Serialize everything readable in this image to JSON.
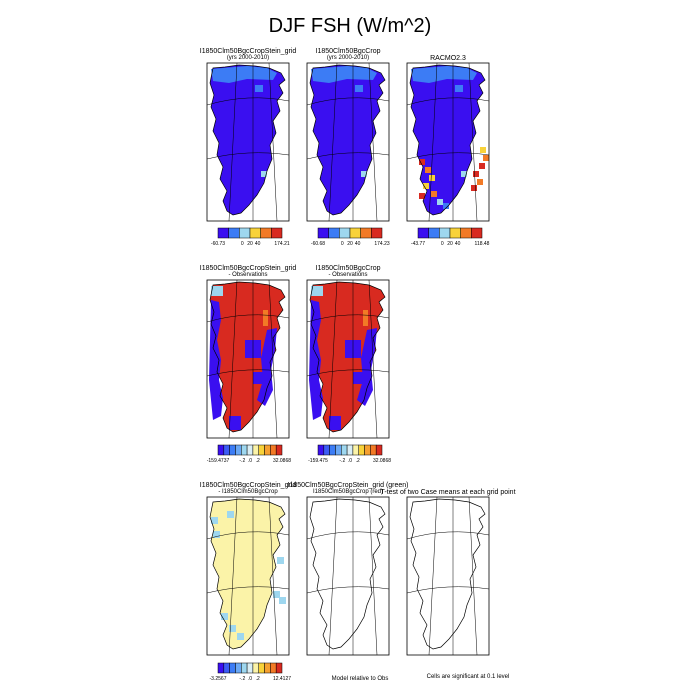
{
  "figure": {
    "title": "DJF FSH (W/m^2)",
    "footer_middle": "Model relative to Obs",
    "footer_right": "Cells are significant at 0.1 level"
  },
  "colors": {
    "deep_blue": "#3a0ff0",
    "blue": "#3c7cf5",
    "light_blue": "#9ed7ef",
    "pale_yellow": "#fbf3a8",
    "yellow": "#f8d23a",
    "orange": "#f27a26",
    "red": "#d82a20"
  },
  "chart_data": [
    {
      "type": "heatmap",
      "id": "p1",
      "title_lines": [
        "I1850Clm50BgcCropStein_grid",
        "(yrs 2000-2010)"
      ],
      "colorbar_labels": [
        "-60.73",
        "0",
        "20",
        "40",
        "174.21"
      ],
      "colorbar_colors": [
        "#3a0ff0",
        "#3c7cf5",
        "#9ed7ef",
        "#f8d23a",
        "#f27a26",
        "#d82a20"
      ],
      "dominant": "#3a0ff0"
    },
    {
      "type": "heatmap",
      "id": "p2",
      "title_lines": [
        "I1850Clm50BgcCrop",
        "(yrs 2000-2010)"
      ],
      "colorbar_labels": [
        "-60.68",
        "0",
        "20",
        "40",
        "174.23"
      ],
      "colorbar_colors": [
        "#3a0ff0",
        "#3c7cf5",
        "#9ed7ef",
        "#f8d23a",
        "#f27a26",
        "#d82a20"
      ],
      "dominant": "#3a0ff0"
    },
    {
      "type": "heatmap",
      "id": "p3",
      "title_lines": [
        "RACMO2.3"
      ],
      "colorbar_labels": [
        "-43.77",
        "0",
        "20",
        "40",
        "118.48"
      ],
      "colorbar_colors": [
        "#3a0ff0",
        "#3c7cf5",
        "#9ed7ef",
        "#f8d23a",
        "#f27a26",
        "#d82a20"
      ],
      "dominant": "#3a0ff0"
    },
    {
      "type": "heatmap",
      "id": "p4",
      "title_lines": [
        "I1850Clm50BgcCropStein_grid",
        "- Observations"
      ],
      "colorbar_labels": [
        "-159.4737",
        "-.2",
        ".0",
        ".2",
        "32.0868"
      ],
      "colorbar_colors": [
        "#3a0ff0",
        "#3c5cf5",
        "#3c7cf5",
        "#6aa8f5",
        "#9ed7ef",
        "#d9eef5",
        "#fbf3a8",
        "#f8d23a",
        "#f5a030",
        "#f27a26",
        "#d82a20"
      ],
      "dominant": "#d82a20"
    },
    {
      "type": "heatmap",
      "id": "p5",
      "title_lines": [
        "I1850Clm50BgcCrop",
        "- Observations"
      ],
      "colorbar_labels": [
        "-159.475",
        "-.2",
        ".0",
        ".2",
        "32.0868"
      ],
      "colorbar_colors": [
        "#3a0ff0",
        "#3c5cf5",
        "#3c7cf5",
        "#6aa8f5",
        "#9ed7ef",
        "#d9eef5",
        "#fbf3a8",
        "#f8d23a",
        "#f5a030",
        "#f27a26",
        "#d82a20"
      ],
      "dominant": "#d82a20"
    },
    {
      "type": "heatmap",
      "id": "p6",
      "title_lines": [
        "I1850Clm50BgcCropStein_grid",
        "- I1850Clm50BgcCrop"
      ],
      "colorbar_labels": [
        "-3.2567",
        "-.2",
        ".0",
        ".2",
        "12.4127"
      ],
      "colorbar_colors": [
        "#3a0ff0",
        "#3c5cf5",
        "#3c7cf5",
        "#6aa8f5",
        "#9ed7ef",
        "#d9eef5",
        "#fbf3a8",
        "#f8d23a",
        "#f5a030",
        "#f27a26",
        "#d82a20"
      ],
      "dominant": "#fbf3a8"
    },
    {
      "type": "heatmap",
      "id": "p7",
      "title_lines": [
        "I1850Clm50BgcCropStein_grid (green)",
        "I1850Clm50BgcCrop (red)"
      ],
      "dominant": "none"
    },
    {
      "type": "heatmap",
      "id": "p8",
      "title_lines": [
        "T-test of two Case means at each grid point"
      ],
      "dominant": "none"
    }
  ]
}
